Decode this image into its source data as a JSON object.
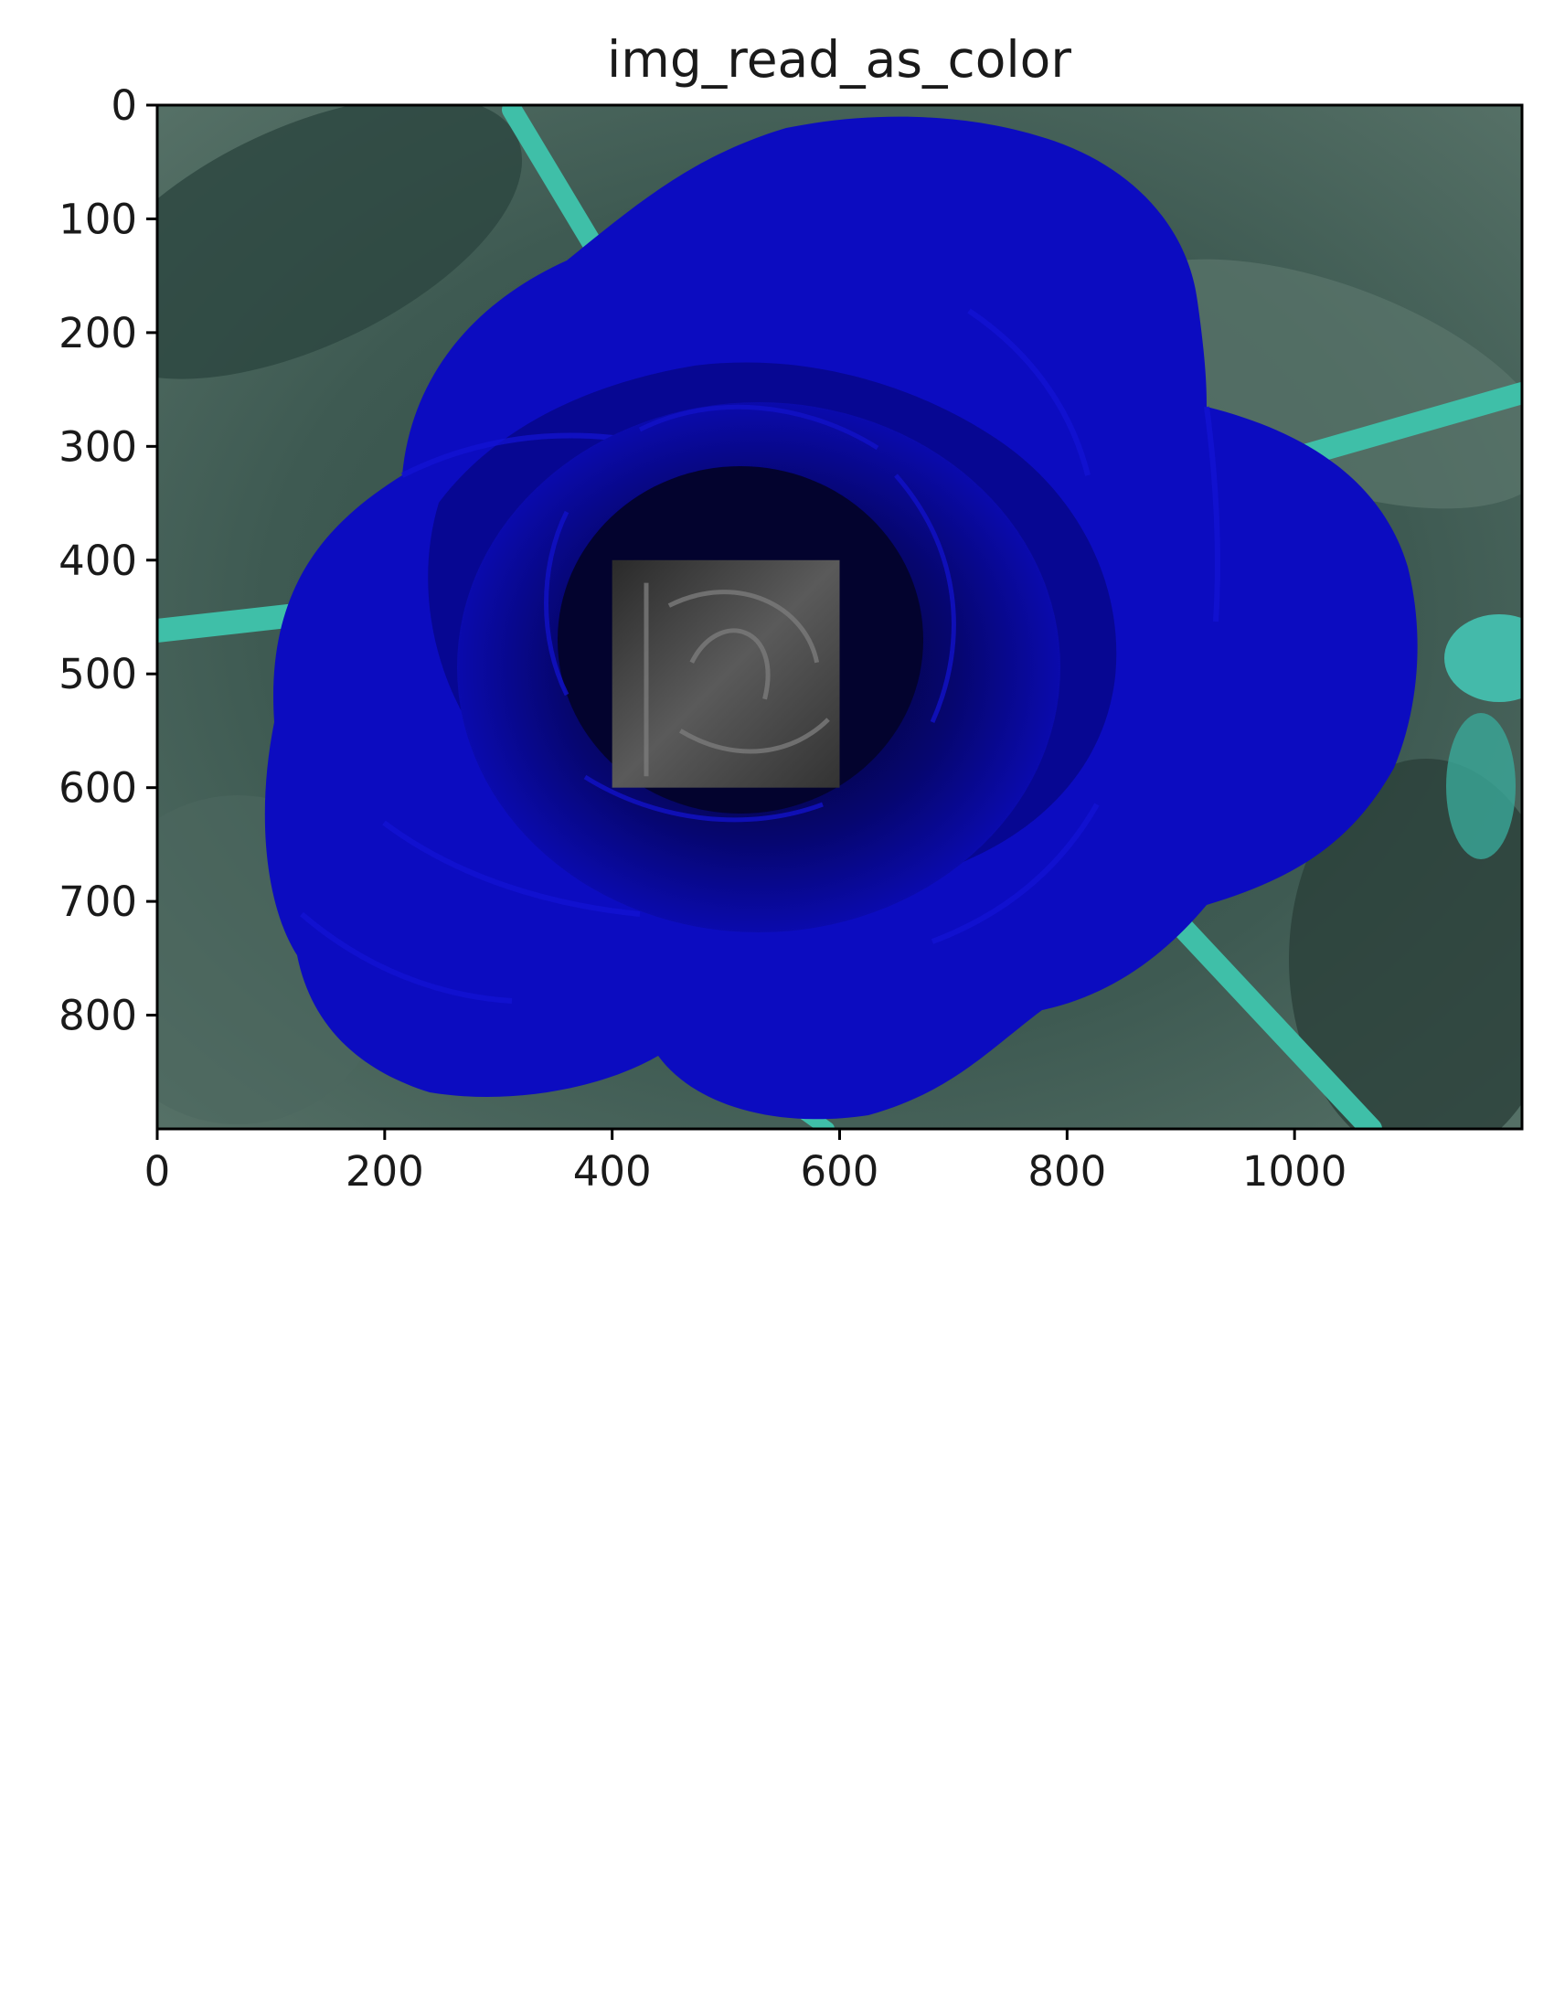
{
  "chart_data": {
    "type": "image",
    "title": "img_read_as_color",
    "xlim": [
      0,
      1200
    ],
    "ylim": [
      900,
      0
    ],
    "y_axis_inverted": true,
    "x_ticks": [
      0,
      200,
      400,
      600,
      800,
      1000
    ],
    "x_tick_labels": [
      "0",
      "200",
      "400",
      "600",
      "800",
      "1000"
    ],
    "y_ticks": [
      0,
      100,
      200,
      300,
      400,
      500,
      600,
      700,
      800
    ],
    "y_tick_labels": [
      "0",
      "100",
      "200",
      "300",
      "400",
      "500",
      "600",
      "700",
      "800"
    ],
    "grayscale_region": {
      "x": [
        400,
        600
      ],
      "y": [
        400,
        600
      ]
    },
    "colors": {
      "rose": "#0a0ab5",
      "rose_dark": "#050560",
      "background": "#3e5a52",
      "stems": "#3fbfa8",
      "grayscale_patch": "#4a4a4a"
    }
  }
}
